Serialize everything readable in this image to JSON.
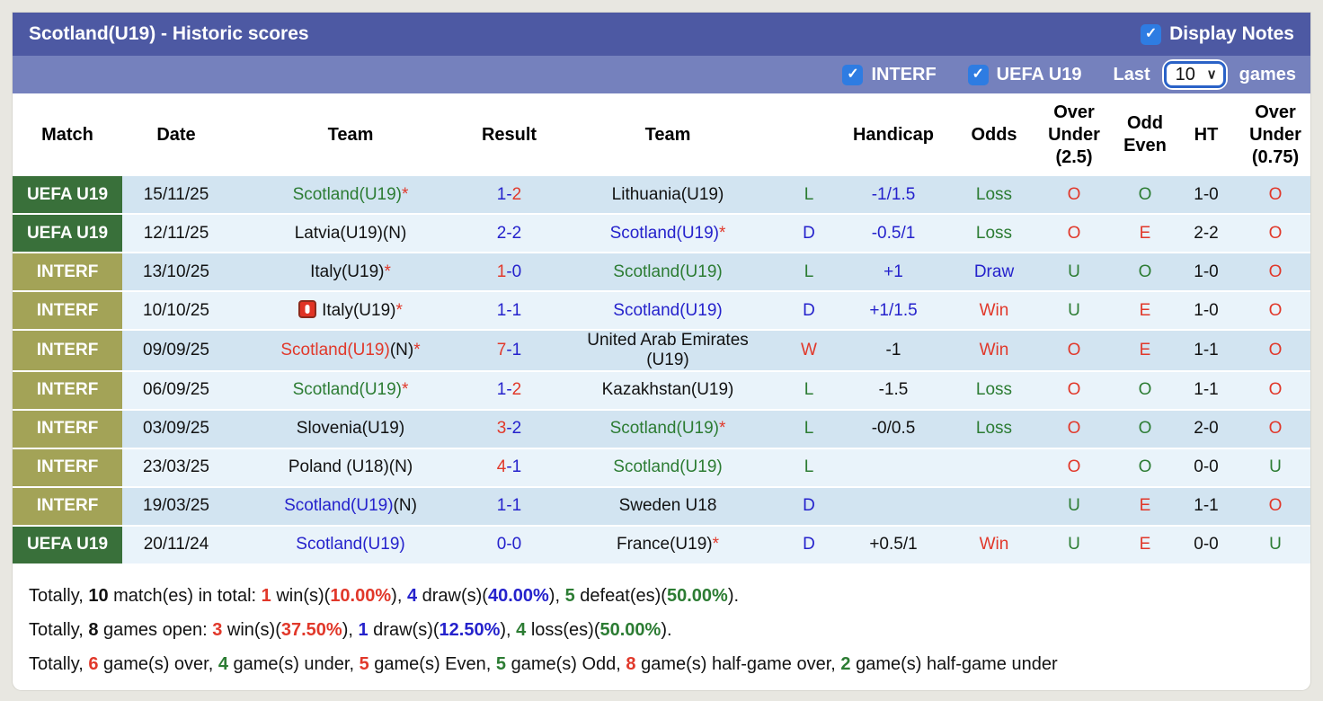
{
  "header": {
    "title": "Scotland(U19) - Historic scores",
    "display_notes_label": "Display Notes"
  },
  "filter_bar": {
    "interf_label": "INTERF",
    "uefa_label": "UEFA U19",
    "last_label": "Last",
    "last_value": "10",
    "games_label": "games"
  },
  "icons": {
    "checkmark": "✓",
    "chevron_down": "∨"
  },
  "colors": {
    "accent_bar": "#4d59a3",
    "filter_bar": "#7581bd",
    "checkbox_blue": "#2e7ce2",
    "uefa_badge_green": "#39703a",
    "interf_badge_olive": "#a3a357",
    "row_odd": "#d2e4f1",
    "row_even": "#e9f3fa",
    "text_blue": "#2522cc",
    "text_red": "#e1382a",
    "text_green": "#2c7c33"
  },
  "table": {
    "columns": [
      {
        "key": "match",
        "label": "Match"
      },
      {
        "key": "date",
        "label": "Date"
      },
      {
        "key": "team_home",
        "label": "Team"
      },
      {
        "key": "result",
        "label": "Result"
      },
      {
        "key": "team_away",
        "label": "Team"
      },
      {
        "key": "outcome",
        "label": ""
      },
      {
        "key": "handicap",
        "label": "Handicap"
      },
      {
        "key": "odds",
        "label": "Odds"
      },
      {
        "key": "ou25",
        "label": "Over\nUnder\n(2.5)"
      },
      {
        "key": "odd_even",
        "label": "Odd\nEven"
      },
      {
        "key": "ht",
        "label": "HT"
      },
      {
        "key": "ou075",
        "label": "Over\nUnder\n(0.75)"
      }
    ],
    "rows": [
      {
        "league": "UEFA U19",
        "league_class": "uefa",
        "date": "15/11/25",
        "team1": [
          {
            "t": "Scotland(U19)",
            "c": "green"
          },
          {
            "t": "*",
            "c": "red"
          }
        ],
        "score": [
          {
            "t": "1",
            "c": "blue"
          },
          {
            "t": "-",
            "c": "blue"
          },
          {
            "t": "2",
            "c": "red"
          }
        ],
        "team2": [
          {
            "t": "Lithuania(U19)",
            "c": "black"
          }
        ],
        "outcome": {
          "t": "L",
          "c": "green"
        },
        "handicap": {
          "t": "-1/1.5",
          "c": "blue"
        },
        "odds": {
          "t": "Loss",
          "c": "green"
        },
        "ou25": {
          "t": "O",
          "c": "red"
        },
        "odd_even": {
          "t": "O",
          "c": "green"
        },
        "ht": {
          "t": "1-0",
          "c": "black"
        },
        "ou075": {
          "t": "O",
          "c": "red"
        }
      },
      {
        "league": "UEFA U19",
        "league_class": "uefa",
        "date": "12/11/25",
        "team1": [
          {
            "t": "Latvia(U19)(N)",
            "c": "black"
          }
        ],
        "score": [
          {
            "t": "2",
            "c": "blue"
          },
          {
            "t": "-",
            "c": "blue"
          },
          {
            "t": "2",
            "c": "blue"
          }
        ],
        "team2": [
          {
            "t": "Scotland(U19)",
            "c": "blue"
          },
          {
            "t": "*",
            "c": "red"
          }
        ],
        "outcome": {
          "t": "D",
          "c": "blue"
        },
        "handicap": {
          "t": "-0.5/1",
          "c": "blue"
        },
        "odds": {
          "t": "Loss",
          "c": "green"
        },
        "ou25": {
          "t": "O",
          "c": "red"
        },
        "odd_even": {
          "t": "E",
          "c": "red"
        },
        "ht": {
          "t": "2-2",
          "c": "black"
        },
        "ou075": {
          "t": "O",
          "c": "red"
        }
      },
      {
        "league": "INTERF",
        "league_class": "interf",
        "date": "13/10/25",
        "team1": [
          {
            "t": "Italy(U19)",
            "c": "black"
          },
          {
            "t": "*",
            "c": "red"
          }
        ],
        "score": [
          {
            "t": "1",
            "c": "red"
          },
          {
            "t": "-",
            "c": "blue"
          },
          {
            "t": "0",
            "c": "blue"
          }
        ],
        "team2": [
          {
            "t": "Scotland(U19)",
            "c": "green"
          }
        ],
        "outcome": {
          "t": "L",
          "c": "green"
        },
        "handicap": {
          "t": "+1",
          "c": "blue"
        },
        "odds": {
          "t": "Draw",
          "c": "blue"
        },
        "ou25": {
          "t": "U",
          "c": "green"
        },
        "odd_even": {
          "t": "O",
          "c": "green"
        },
        "ht": {
          "t": "1-0",
          "c": "black"
        },
        "ou075": {
          "t": "O",
          "c": "red"
        }
      },
      {
        "league": "INTERF",
        "league_class": "interf",
        "date": "10/10/25",
        "team1": [
          {
            "icon": "red-card-icon"
          },
          {
            "t": "Italy(U19)",
            "c": "black"
          },
          {
            "t": "*",
            "c": "red"
          }
        ],
        "score": [
          {
            "t": "1",
            "c": "blue"
          },
          {
            "t": "-",
            "c": "blue"
          },
          {
            "t": "1",
            "c": "blue"
          }
        ],
        "team2": [
          {
            "t": "Scotland(U19)",
            "c": "blue"
          }
        ],
        "outcome": {
          "t": "D",
          "c": "blue"
        },
        "handicap": {
          "t": "+1/1.5",
          "c": "blue"
        },
        "odds": {
          "t": "Win",
          "c": "red"
        },
        "ou25": {
          "t": "U",
          "c": "green"
        },
        "odd_even": {
          "t": "E",
          "c": "red"
        },
        "ht": {
          "t": "1-0",
          "c": "black"
        },
        "ou075": {
          "t": "O",
          "c": "red"
        }
      },
      {
        "league": "INTERF",
        "league_class": "interf",
        "date": "09/09/25",
        "team1": [
          {
            "t": "Scotland(U19)",
            "c": "red"
          },
          {
            "t": "(N)",
            "c": "black"
          },
          {
            "t": "*",
            "c": "red"
          }
        ],
        "score": [
          {
            "t": "7",
            "c": "red"
          },
          {
            "t": "-",
            "c": "blue"
          },
          {
            "t": "1",
            "c": "blue"
          }
        ],
        "team2": [
          {
            "t": "United Arab Emirates (U19)",
            "c": "black"
          }
        ],
        "outcome": {
          "t": "W",
          "c": "red"
        },
        "handicap": {
          "t": "-1",
          "c": "black"
        },
        "odds": {
          "t": "Win",
          "c": "red"
        },
        "ou25": {
          "t": "O",
          "c": "red"
        },
        "odd_even": {
          "t": "E",
          "c": "red"
        },
        "ht": {
          "t": "1-1",
          "c": "black"
        },
        "ou075": {
          "t": "O",
          "c": "red"
        }
      },
      {
        "league": "INTERF",
        "league_class": "interf",
        "date": "06/09/25",
        "team1": [
          {
            "t": "Scotland(U19)",
            "c": "green"
          },
          {
            "t": "*",
            "c": "red"
          }
        ],
        "score": [
          {
            "t": "1",
            "c": "blue"
          },
          {
            "t": "-",
            "c": "blue"
          },
          {
            "t": "2",
            "c": "red"
          }
        ],
        "team2": [
          {
            "t": "Kazakhstan(U19)",
            "c": "black"
          }
        ],
        "outcome": {
          "t": "L",
          "c": "green"
        },
        "handicap": {
          "t": "-1.5",
          "c": "black"
        },
        "odds": {
          "t": "Loss",
          "c": "green"
        },
        "ou25": {
          "t": "O",
          "c": "red"
        },
        "odd_even": {
          "t": "O",
          "c": "green"
        },
        "ht": {
          "t": "1-1",
          "c": "black"
        },
        "ou075": {
          "t": "O",
          "c": "red"
        }
      },
      {
        "league": "INTERF",
        "league_class": "interf",
        "date": "03/09/25",
        "team1": [
          {
            "t": "Slovenia(U19)",
            "c": "black"
          }
        ],
        "score": [
          {
            "t": "3",
            "c": "red"
          },
          {
            "t": "-",
            "c": "blue"
          },
          {
            "t": "2",
            "c": "blue"
          }
        ],
        "team2": [
          {
            "t": "Scotland(U19)",
            "c": "green"
          },
          {
            "t": "*",
            "c": "red"
          }
        ],
        "outcome": {
          "t": "L",
          "c": "green"
        },
        "handicap": {
          "t": "-0/0.5",
          "c": "black"
        },
        "odds": {
          "t": "Loss",
          "c": "green"
        },
        "ou25": {
          "t": "O",
          "c": "red"
        },
        "odd_even": {
          "t": "O",
          "c": "green"
        },
        "ht": {
          "t": "2-0",
          "c": "black"
        },
        "ou075": {
          "t": "O",
          "c": "red"
        }
      },
      {
        "league": "INTERF",
        "league_class": "interf",
        "date": "23/03/25",
        "team1": [
          {
            "t": "Poland (U18)(N)",
            "c": "black"
          }
        ],
        "score": [
          {
            "t": "4",
            "c": "red"
          },
          {
            "t": "-",
            "c": "blue"
          },
          {
            "t": "1",
            "c": "blue"
          }
        ],
        "team2": [
          {
            "t": "Scotland(U19)",
            "c": "green"
          }
        ],
        "outcome": {
          "t": "L",
          "c": "green"
        },
        "handicap": null,
        "odds": null,
        "ou25": {
          "t": "O",
          "c": "red"
        },
        "odd_even": {
          "t": "O",
          "c": "green"
        },
        "ht": {
          "t": "0-0",
          "c": "black"
        },
        "ou075": {
          "t": "U",
          "c": "green"
        }
      },
      {
        "league": "INTERF",
        "league_class": "interf",
        "date": "19/03/25",
        "team1": [
          {
            "t": "Scotland(U19)",
            "c": "blue"
          },
          {
            "t": "(N)",
            "c": "black"
          }
        ],
        "score": [
          {
            "t": "1",
            "c": "blue"
          },
          {
            "t": "-",
            "c": "blue"
          },
          {
            "t": "1",
            "c": "blue"
          }
        ],
        "team2": [
          {
            "t": "Sweden U18",
            "c": "black"
          }
        ],
        "outcome": {
          "t": "D",
          "c": "blue"
        },
        "handicap": null,
        "odds": null,
        "ou25": {
          "t": "U",
          "c": "green"
        },
        "odd_even": {
          "t": "E",
          "c": "red"
        },
        "ht": {
          "t": "1-1",
          "c": "black"
        },
        "ou075": {
          "t": "O",
          "c": "red"
        }
      },
      {
        "league": "UEFA U19",
        "league_class": "uefa",
        "date": "20/11/24",
        "team1": [
          {
            "t": "Scotland(U19)",
            "c": "blue"
          }
        ],
        "score": [
          {
            "t": "0",
            "c": "blue"
          },
          {
            "t": "-",
            "c": "blue"
          },
          {
            "t": "0",
            "c": "blue"
          }
        ],
        "team2": [
          {
            "t": "France(U19)",
            "c": "black"
          },
          {
            "t": "*",
            "c": "red"
          }
        ],
        "outcome": {
          "t": "D",
          "c": "blue"
        },
        "handicap": {
          "t": "+0.5/1",
          "c": "black"
        },
        "odds": {
          "t": "Win",
          "c": "red"
        },
        "ou25": {
          "t": "U",
          "c": "green"
        },
        "odd_even": {
          "t": "E",
          "c": "red"
        },
        "ht": {
          "t": "0-0",
          "c": "black"
        },
        "ou075": {
          "t": "U",
          "c": "green"
        }
      }
    ]
  },
  "summary": {
    "lines": [
      [
        {
          "t": "Totally, ",
          "c": "black"
        },
        {
          "t": "10",
          "c": "black",
          "b": true
        },
        {
          "t": " match(es) in total: ",
          "c": "black"
        },
        {
          "t": "1",
          "c": "red",
          "b": true
        },
        {
          "t": " win(s)(",
          "c": "black"
        },
        {
          "t": "10.00%",
          "c": "red",
          "b": true
        },
        {
          "t": "), ",
          "c": "black"
        },
        {
          "t": "4",
          "c": "blue",
          "b": true
        },
        {
          "t": " draw(s)(",
          "c": "black"
        },
        {
          "t": "40.00%",
          "c": "blue",
          "b": true
        },
        {
          "t": "), ",
          "c": "black"
        },
        {
          "t": "5",
          "c": "green",
          "b": true
        },
        {
          "t": " defeat(es)(",
          "c": "black"
        },
        {
          "t": "50.00%",
          "c": "green",
          "b": true
        },
        {
          "t": ").",
          "c": "black"
        }
      ],
      [
        {
          "t": "Totally, ",
          "c": "black"
        },
        {
          "t": "8",
          "c": "black",
          "b": true
        },
        {
          "t": " games open: ",
          "c": "black"
        },
        {
          "t": "3",
          "c": "red",
          "b": true
        },
        {
          "t": " win(s)(",
          "c": "black"
        },
        {
          "t": "37.50%",
          "c": "red",
          "b": true
        },
        {
          "t": "), ",
          "c": "black"
        },
        {
          "t": "1",
          "c": "blue",
          "b": true
        },
        {
          "t": " draw(s)(",
          "c": "black"
        },
        {
          "t": "12.50%",
          "c": "blue",
          "b": true
        },
        {
          "t": "), ",
          "c": "black"
        },
        {
          "t": "4",
          "c": "green",
          "b": true
        },
        {
          "t": " loss(es)(",
          "c": "black"
        },
        {
          "t": "50.00%",
          "c": "green",
          "b": true
        },
        {
          "t": ").",
          "c": "black"
        }
      ],
      [
        {
          "t": "Totally, ",
          "c": "black"
        },
        {
          "t": "6",
          "c": "red",
          "b": true
        },
        {
          "t": " game(s) over, ",
          "c": "black"
        },
        {
          "t": "4",
          "c": "green",
          "b": true
        },
        {
          "t": " game(s) under, ",
          "c": "black"
        },
        {
          "t": "5",
          "c": "red",
          "b": true
        },
        {
          "t": " game(s) Even, ",
          "c": "black"
        },
        {
          "t": "5",
          "c": "green",
          "b": true
        },
        {
          "t": " game(s) Odd, ",
          "c": "black"
        },
        {
          "t": "8",
          "c": "red",
          "b": true
        },
        {
          "t": " game(s) half-game over, ",
          "c": "black"
        },
        {
          "t": "2",
          "c": "green",
          "b": true
        },
        {
          "t": " game(s) half-game under",
          "c": "black"
        }
      ]
    ]
  }
}
